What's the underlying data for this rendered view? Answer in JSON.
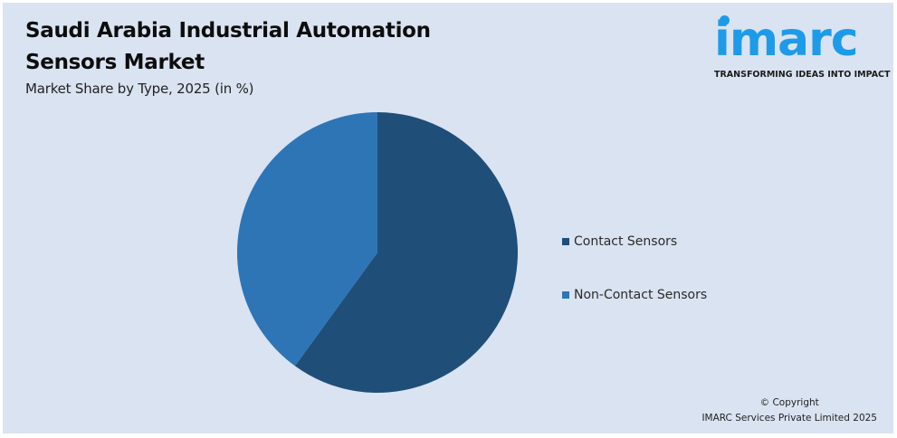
{
  "header": {
    "title": "Saudi Arabia Industrial Automation Sensors Market",
    "subtitle": "Market Share by Type, 2025 (in %)"
  },
  "logo": {
    "word": "imarc",
    "tagline": "TRANSFORMING IDEAS INTO IMPACT",
    "color": "#1e9be8"
  },
  "legend": {
    "items": [
      {
        "label": "Contact Sensors",
        "color": "#1f4e79"
      },
      {
        "label": "Non-Contact Sensors",
        "color": "#2e75b6"
      }
    ]
  },
  "footer": {
    "copyright": "© Copyright",
    "company": "IMARC Services Private Limited 2025"
  },
  "chart_data": {
    "type": "pie",
    "title": "Saudi Arabia Industrial Automation Sensors Market",
    "subtitle": "Market Share by Type, 2025 (in %)",
    "categories": [
      "Contact Sensors",
      "Non-Contact Sensors"
    ],
    "values": [
      60,
      40
    ],
    "colors": [
      "#1f4e79",
      "#2e75b6"
    ],
    "start_angle_deg": 0,
    "direction": "clockwise",
    "legend_position": "right",
    "data_labels": false
  }
}
